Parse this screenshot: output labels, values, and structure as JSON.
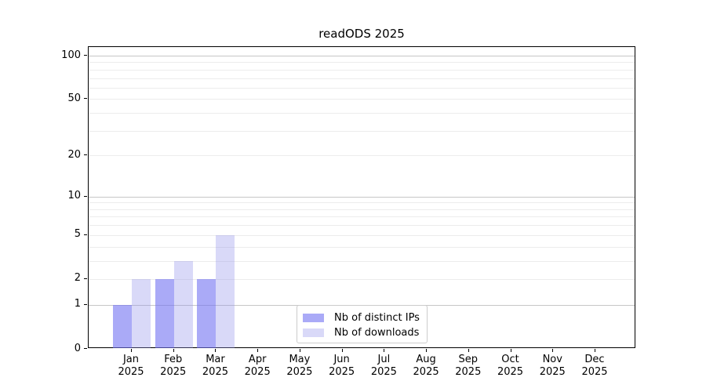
{
  "page": {
    "background": "#ffffff"
  },
  "chart_data": {
    "type": "bar",
    "title": "readODS 2025",
    "x_tick_months": [
      "Jan",
      "Feb",
      "Mar",
      "Apr",
      "May",
      "Jun",
      "Jul",
      "Aug",
      "Sep",
      "Oct",
      "Nov",
      "Dec"
    ],
    "x_tick_year": "2025",
    "categories": [
      "Jan 2025",
      "Feb 2025",
      "Mar 2025",
      "Apr 2025",
      "May 2025",
      "Jun 2025",
      "Jul 2025",
      "Aug 2025",
      "Sep 2025",
      "Oct 2025",
      "Nov 2025",
      "Dec 2025"
    ],
    "series": [
      {
        "name": "Nb of distinct IPs",
        "fill": "rgba(113,113,242,0.60)",
        "values": [
          1,
          2,
          2,
          0,
          0,
          0,
          0,
          0,
          0,
          0,
          0,
          0
        ]
      },
      {
        "name": "Nb of downloads",
        "fill": "rgba(146,146,235,0.35)",
        "values": [
          2,
          3,
          5,
          0,
          0,
          0,
          0,
          0,
          0,
          0,
          0,
          0
        ]
      }
    ],
    "yscale": "log1p",
    "ylim": [
      0,
      115
    ],
    "y_tick_values": [
      0,
      1,
      2,
      5,
      10,
      20,
      50,
      100
    ],
    "y_major_grid": [
      1,
      10,
      100
    ],
    "y_minor_grid": [
      2,
      3,
      4,
      5,
      6,
      7,
      8,
      9,
      20,
      30,
      40,
      50,
      60,
      70,
      80,
      90
    ],
    "grid": "horizontal",
    "legend_position": "lower-center"
  },
  "colors": {
    "major_grid": "#c6c6c6",
    "minor_grid": "#ececec",
    "spine": "#000000",
    "text": "#000000",
    "legend_border": "#cccccc"
  }
}
